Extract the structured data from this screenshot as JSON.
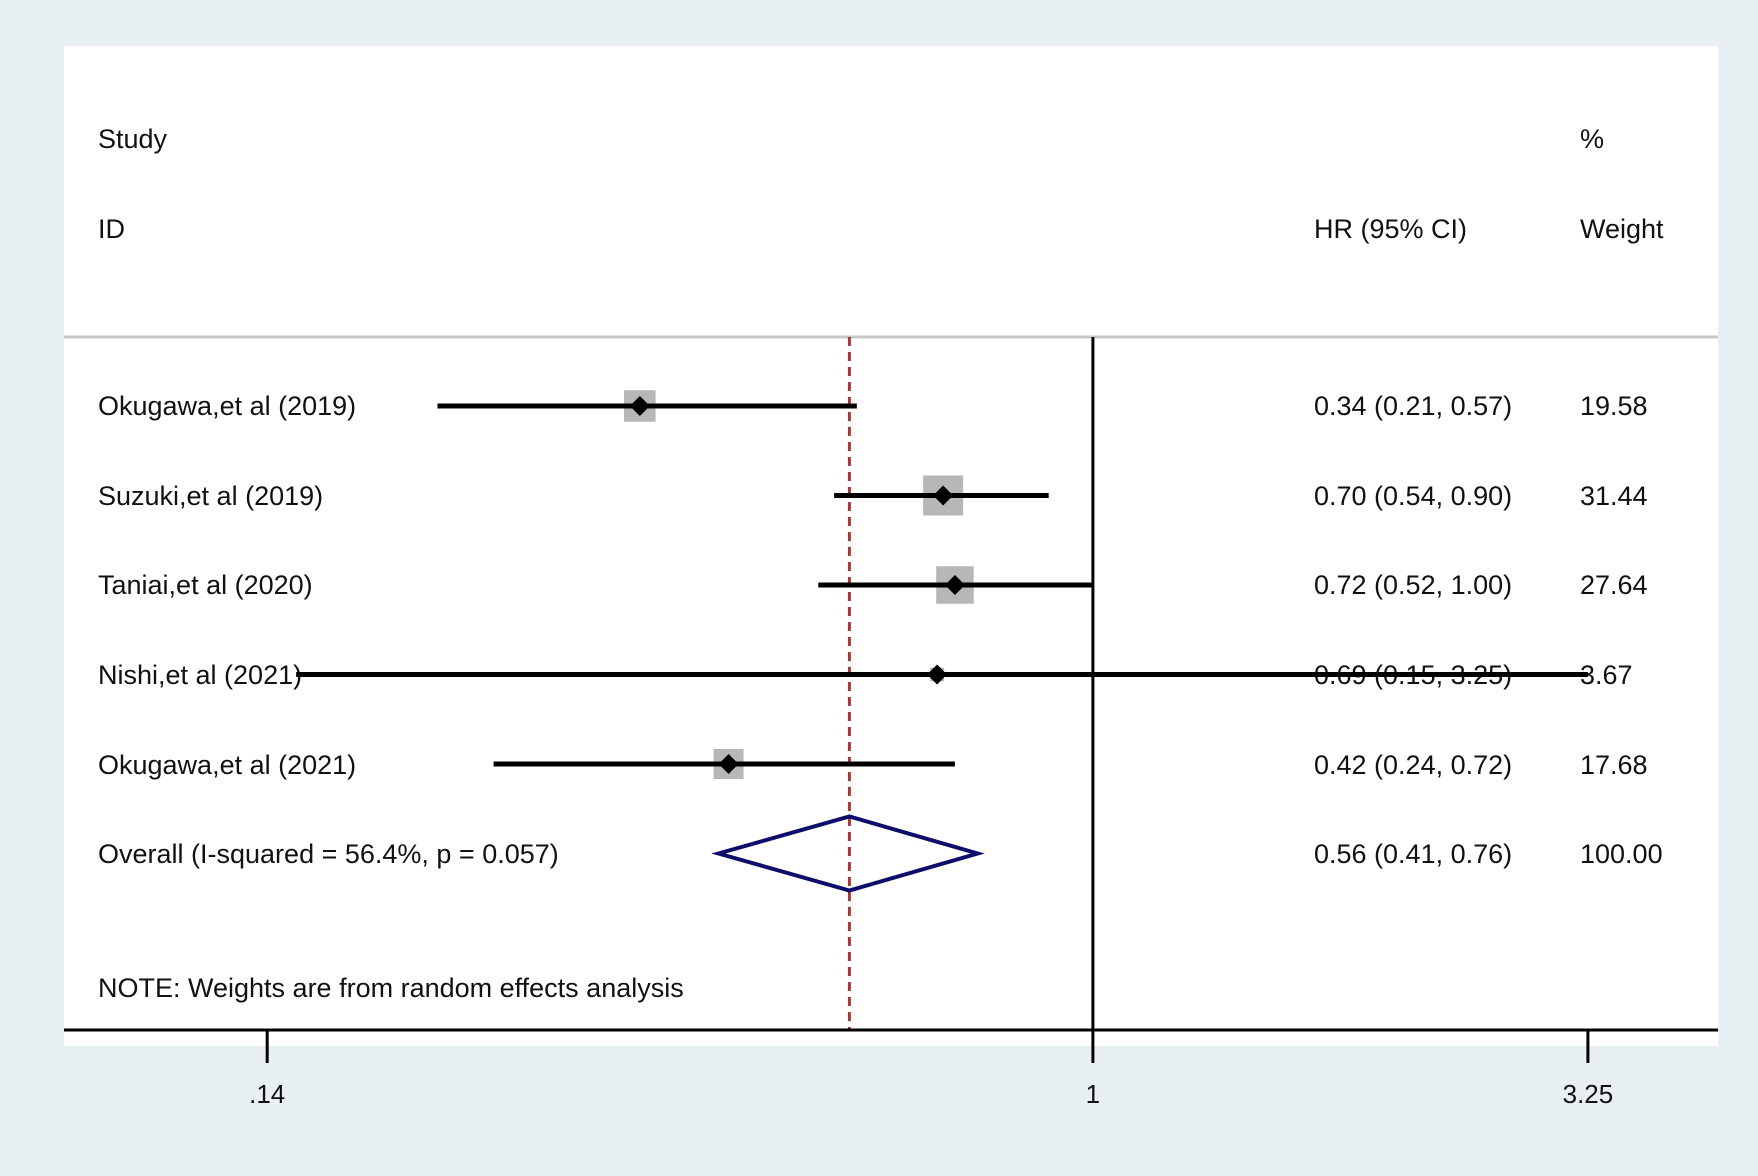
{
  "headers": {
    "study": "Study",
    "id": "ID",
    "hr": "HR (95% CI)",
    "pct": "%",
    "weight": "Weight"
  },
  "note": "NOTE: Weights are from random effects analysis",
  "colors": {
    "background": "#e9f0f3",
    "panel": "#ffffff",
    "marker": "#000000",
    "weight_box": "#b7b7b7",
    "overall_diamond": "#0d0d6b",
    "overall_line": "#a33a3a",
    "separator": "#c8c8c8"
  },
  "chart_data": {
    "type": "forest",
    "xscale": "log",
    "x_ticks": [
      0.14,
      1,
      3.25
    ],
    "x_tick_labels": [
      ".14",
      "1",
      "3.25"
    ],
    "xlim": [
      0.0863,
      4.43
    ],
    "null_line": 1,
    "overall_line": 0.56,
    "studies": [
      {
        "name": "Okugawa,et al (2019)",
        "hr": 0.34,
        "lower": 0.21,
        "upper": 0.57,
        "ci_text": "0.34 (0.21, 0.57)",
        "weight": 19.58,
        "weight_text": "19.58"
      },
      {
        "name": "Suzuki,et al (2019)",
        "hr": 0.7,
        "lower": 0.54,
        "upper": 0.9,
        "ci_text": "0.70 (0.54, 0.90)",
        "weight": 31.44,
        "weight_text": "31.44"
      },
      {
        "name": "Taniai,et al (2020)",
        "hr": 0.72,
        "lower": 0.52,
        "upper": 1.0,
        "ci_text": "0.72 (0.52, 1.00)",
        "weight": 27.64,
        "weight_text": "27.64"
      },
      {
        "name": "Nishi,et al (2021)",
        "hr": 0.69,
        "lower": 0.15,
        "upper": 3.25,
        "ci_text": "0.69 (0.15, 3.25)",
        "weight": 3.67,
        "weight_text": "3.67"
      },
      {
        "name": "Okugawa,et al (2021)",
        "hr": 0.42,
        "lower": 0.24,
        "upper": 0.72,
        "ci_text": "0.42 (0.24, 0.72)",
        "weight": 17.68,
        "weight_text": "17.68"
      }
    ],
    "overall": {
      "name": "Overall  (I-squared = 56.4%, p = 0.057)",
      "hr": 0.56,
      "lower": 0.41,
      "upper": 0.76,
      "ci_text": "0.56 (0.41, 0.76)",
      "weight": 100.0,
      "weight_text": "100.00"
    }
  }
}
